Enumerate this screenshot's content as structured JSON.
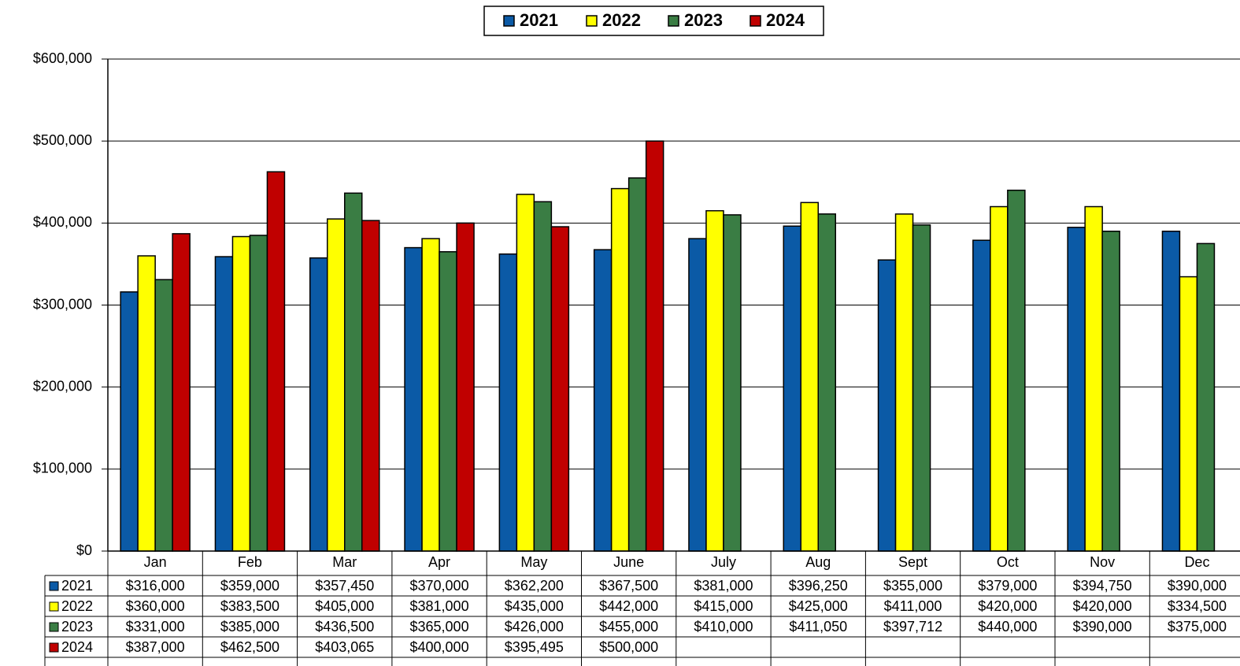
{
  "chart_data": {
    "type": "bar",
    "categories": [
      "Jan",
      "Feb",
      "Mar",
      "Apr",
      "May",
      "June",
      "July",
      "Aug",
      "Sept",
      "Oct",
      "Nov",
      "Dec"
    ],
    "series": [
      {
        "name": "2021",
        "color": "#0b5aa6",
        "values": [
          316000,
          359000,
          357450,
          370000,
          362200,
          367500,
          381000,
          396250,
          355000,
          379000,
          394750,
          390000
        ],
        "value_labels": [
          "$316,000",
          "$359,000",
          "$357,450",
          "$370,000",
          "$362,200",
          "$367,500",
          "$381,000",
          "$396,250",
          "$355,000",
          "$379,000",
          "$394,750",
          "$390,000"
        ]
      },
      {
        "name": "2022",
        "color": "#ffff00",
        "values": [
          360000,
          383500,
          405000,
          381000,
          435000,
          442000,
          415000,
          425000,
          411000,
          420000,
          420000,
          334500
        ],
        "value_labels": [
          "$360,000",
          "$383,500",
          "$405,000",
          "$381,000",
          "$435,000",
          "$442,000",
          "$415,000",
          "$425,000",
          "$411,000",
          "$420,000",
          "$420,000",
          "$334,500"
        ]
      },
      {
        "name": "2023",
        "color": "#3a7d44",
        "values": [
          331000,
          385000,
          436500,
          365000,
          426000,
          455000,
          410000,
          411050,
          397712,
          440000,
          390000,
          375000
        ],
        "value_labels": [
          "$331,000",
          "$385,000",
          "$436,500",
          "$365,000",
          "$426,000",
          "$455,000",
          "$410,000",
          "$411,050",
          "$397,712",
          "$440,000",
          "$390,000",
          "$375,000"
        ]
      },
      {
        "name": "2024",
        "color": "#c00000",
        "values": [
          387000,
          462500,
          403065,
          400000,
          395495,
          500000,
          null,
          null,
          null,
          null,
          null,
          null
        ],
        "value_labels": [
          "$387,000",
          "$462,500",
          "$403,065",
          "$400,000",
          "$395,495",
          "$500,000",
          null,
          null,
          null,
          null,
          null,
          null
        ]
      }
    ],
    "ylim": [
      0,
      600000
    ],
    "yticks": [
      {
        "value": 0,
        "label": "$0"
      },
      {
        "value": 100000,
        "label": "$100,000"
      },
      {
        "value": 200000,
        "label": "$200,000"
      },
      {
        "value": 300000,
        "label": "$300,000"
      },
      {
        "value": 400000,
        "label": "$400,000"
      },
      {
        "value": 500000,
        "label": "$500,000"
      },
      {
        "value": 600000,
        "label": "$600,000"
      }
    ],
    "grid": true,
    "legend": "top"
  }
}
